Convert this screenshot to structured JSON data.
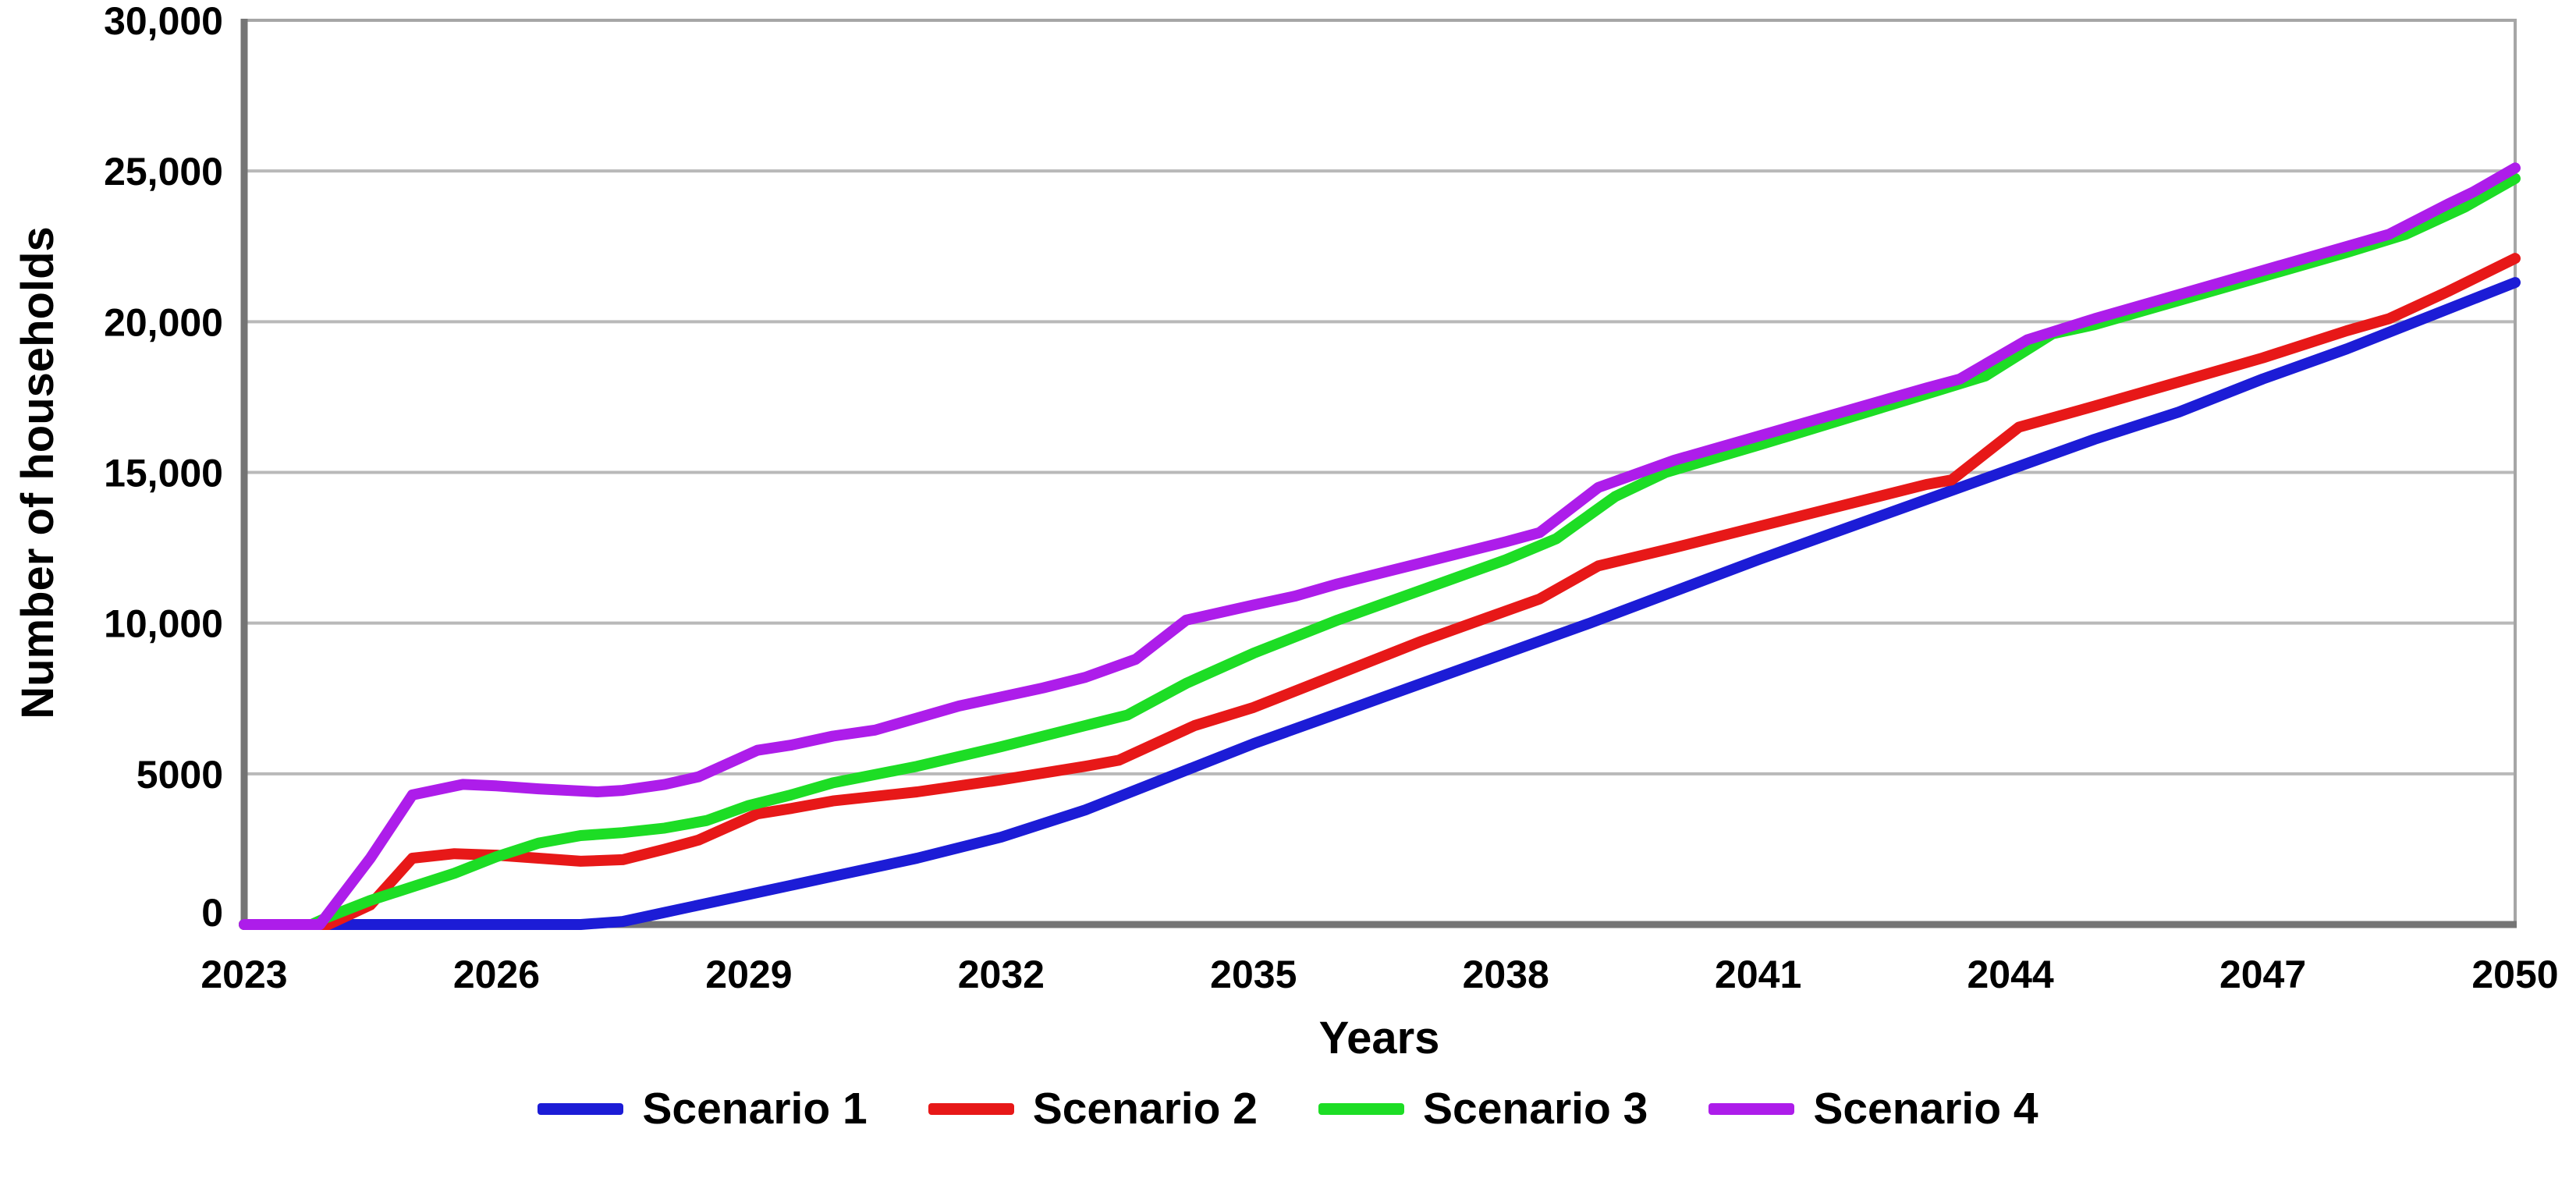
{
  "chart_data": {
    "type": "line",
    "title": "",
    "xlabel": "Years",
    "ylabel": "Number of households",
    "xlim": [
      2023,
      2050
    ],
    "ylim": [
      0,
      30000
    ],
    "grid": "horizontal",
    "legend_position": "bottom",
    "x_ticks": [
      2023,
      2026,
      2029,
      2032,
      2035,
      2038,
      2041,
      2044,
      2047,
      2050
    ],
    "y_ticks": [
      {
        "value": 0,
        "label": "0"
      },
      {
        "value": 5000,
        "label": "5000"
      },
      {
        "value": 10000,
        "label": "10,000"
      },
      {
        "value": 15000,
        "label": "15,000"
      },
      {
        "value": 20000,
        "label": "20,000"
      },
      {
        "value": 25000,
        "label": "25,000"
      },
      {
        "value": 30000,
        "label": "30,000"
      }
    ],
    "series": [
      {
        "name": "Scenario 1",
        "color": "#1c1cd6",
        "x": [
          2023,
          2027,
          2027.5,
          2028,
          2029,
          2030,
          2031,
          2032,
          2033,
          2034,
          2035,
          2036,
          2037,
          2038,
          2039,
          2040,
          2041,
          2042,
          2043,
          2044,
          2045,
          2046,
          2047,
          2048,
          2049,
          2050
        ],
        "y": [
          0,
          0,
          100,
          400,
          1000,
          1600,
          2200,
          2900,
          3800,
          4900,
          6000,
          7000,
          8000,
          9000,
          10000,
          11050,
          12100,
          13100,
          14100,
          15100,
          16100,
          17000,
          18100,
          19100,
          20200,
          21300
        ]
      },
      {
        "name": "Scenario 2",
        "color": "#e71818",
        "x": [
          2023,
          2024,
          2024.5,
          2025,
          2025.5,
          2026,
          2026.5,
          2027,
          2027.5,
          2028,
          2028.4,
          2029.1,
          2029.5,
          2030,
          2031,
          2032,
          2033,
          2033.4,
          2034.3,
          2035,
          2036,
          2037,
          2038,
          2038.4,
          2039.1,
          2040,
          2041,
          2042,
          2043,
          2043.3,
          2044.1,
          2045,
          2046,
          2047,
          2048,
          2048.5,
          2049.2,
          2050
        ],
        "y": [
          0,
          0,
          650,
          2200,
          2350,
          2300,
          2200,
          2100,
          2150,
          2500,
          2800,
          3670,
          3850,
          4100,
          4400,
          4800,
          5250,
          5450,
          6600,
          7200,
          8300,
          9400,
          10400,
          10800,
          11900,
          12500,
          13200,
          13900,
          14600,
          14750,
          16500,
          17200,
          18000,
          18800,
          19700,
          20100,
          21000,
          22100
        ]
      },
      {
        "name": "Scenario 3",
        "color": "#1ddd25",
        "x": [
          2023,
          2023.8,
          2024,
          2024.5,
          2025,
          2025.5,
          2026,
          2026.5,
          2027,
          2027.5,
          2028,
          2028.5,
          2029,
          2029.5,
          2030,
          2031,
          2032,
          2033,
          2033.5,
          2034.2,
          2035,
          2036,
          2037,
          2038,
          2038.6,
          2039.3,
          2039.9,
          2041,
          2042,
          2043,
          2043.7,
          2044.5,
          2045,
          2046,
          2047,
          2048,
          2048.7,
          2049.4,
          2050
        ],
        "y": [
          0,
          0,
          250,
          800,
          1250,
          1700,
          2250,
          2700,
          2950,
          3050,
          3200,
          3450,
          3950,
          4300,
          4700,
          5250,
          5900,
          6600,
          6950,
          8000,
          9000,
          10100,
          11100,
          12100,
          12800,
          14200,
          15000,
          15900,
          16750,
          17600,
          18200,
          19600,
          19900,
          20700,
          21500,
          22300,
          22900,
          23800,
          24750
        ]
      },
      {
        "name": "Scenario 4",
        "color": "#ad1dea",
        "x": [
          2023,
          2023.9,
          2024.5,
          2025,
          2025.6,
          2026,
          2026.5,
          2027.2,
          2027.5,
          2028,
          2028.4,
          2029.1,
          2029.5,
          2030,
          2030.5,
          2031,
          2031.5,
          2032,
          2032.5,
          2033,
          2033.6,
          2034.2,
          2035,
          2035.5,
          2036,
          2037,
          2038,
          2038.4,
          2039.1,
          2040,
          2041,
          2042,
          2043,
          2043.4,
          2044.2,
          2045,
          2046,
          2047,
          2048,
          2048.5,
          2049.2,
          2049.5,
          2050
        ],
        "y": [
          0,
          0,
          2200,
          4300,
          4650,
          4600,
          4500,
          4400,
          4450,
          4650,
          4900,
          5780,
          5950,
          6250,
          6450,
          6850,
          7250,
          7550,
          7850,
          8200,
          8800,
          10100,
          10600,
          10900,
          11300,
          12000,
          12700,
          13000,
          14500,
          15400,
          16200,
          17000,
          17800,
          18100,
          19400,
          20100,
          20900,
          21700,
          22500,
          22900,
          23900,
          24300,
          25100
        ]
      }
    ],
    "style": {
      "background": "#ffffff",
      "gridline_color": "#b9b9b9",
      "border_color": "#a6a6a6",
      "axis_color": "#757575",
      "text_color": "#000000",
      "line_width": 14
    }
  }
}
